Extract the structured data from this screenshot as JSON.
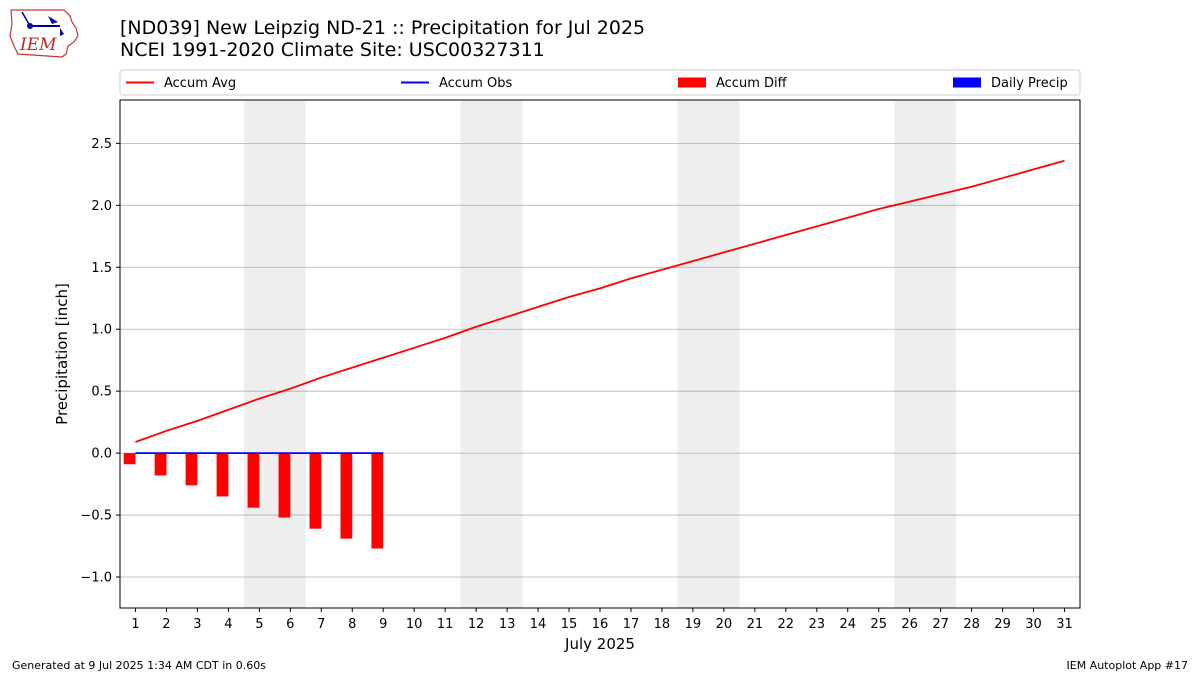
{
  "header": {
    "title": "[ND039] New Leipzig  ND-21 :: Precipitation for Jul 2025",
    "subtitle": "NCEI 1991-2020 Climate Site: USC00327311",
    "logo_text": "IEM"
  },
  "footer": {
    "left": "Generated at 9 Jul 2025 1:34 AM CDT in 0.60s",
    "right": "IEM Autoplot App #17"
  },
  "colors": {
    "accum_avg": "#ff0000",
    "accum_obs": "#0000ff",
    "accum_diff": "#ff0000",
    "daily_precip": "#0000ff",
    "weekend_band": "#eeeeee",
    "grid": "#b0b0b0"
  },
  "chart_data": {
    "type": "line",
    "xlabel": "July 2025",
    "ylabel": "Precipitation [inch]",
    "xlim": [
      0.5,
      31.5
    ],
    "ylim": [
      -1.25,
      2.85
    ],
    "yticks": [
      -1.0,
      -0.5,
      0.0,
      0.5,
      1.0,
      1.5,
      2.0,
      2.5
    ],
    "ytick_labels": [
      "−1.0",
      "−0.5",
      "0.0",
      "0.5",
      "1.0",
      "1.5",
      "2.0",
      "2.5"
    ],
    "x": [
      1,
      2,
      3,
      4,
      5,
      6,
      7,
      8,
      9,
      10,
      11,
      12,
      13,
      14,
      15,
      16,
      17,
      18,
      19,
      20,
      21,
      22,
      23,
      24,
      25,
      26,
      27,
      28,
      29,
      30,
      31
    ],
    "weekend_bands": [
      [
        4.5,
        6.5
      ],
      [
        11.5,
        13.5
      ],
      [
        18.5,
        20.5
      ],
      [
        25.5,
        27.5
      ]
    ],
    "grid": "horizontal",
    "legend_position": "top",
    "legend": [
      "Accum Avg",
      "Accum Obs",
      "Accum Diff",
      "Daily Precip"
    ],
    "series": [
      {
        "name": "Accum Avg",
        "kind": "line",
        "x": [
          1,
          2,
          3,
          4,
          5,
          6,
          7,
          8,
          9,
          10,
          11,
          12,
          13,
          14,
          15,
          16,
          17,
          18,
          19,
          20,
          21,
          22,
          23,
          24,
          25,
          26,
          27,
          28,
          29,
          30,
          31
        ],
        "values": [
          0.09,
          0.18,
          0.26,
          0.35,
          0.44,
          0.52,
          0.61,
          0.69,
          0.77,
          0.85,
          0.93,
          1.02,
          1.1,
          1.18,
          1.26,
          1.33,
          1.41,
          1.48,
          1.55,
          1.62,
          1.69,
          1.76,
          1.83,
          1.9,
          1.97,
          2.03,
          2.09,
          2.15,
          2.22,
          2.29,
          2.36
        ]
      },
      {
        "name": "Accum Obs",
        "kind": "line",
        "x": [
          1,
          2,
          3,
          4,
          5,
          6,
          7,
          8,
          9
        ],
        "values": [
          0,
          0,
          0,
          0,
          0,
          0,
          0,
          0,
          0
        ]
      },
      {
        "name": "Accum Diff",
        "kind": "bar",
        "x": [
          1,
          2,
          3,
          4,
          5,
          6,
          7,
          8,
          9
        ],
        "values": [
          -0.09,
          -0.18,
          -0.26,
          -0.35,
          -0.44,
          -0.52,
          -0.61,
          -0.69,
          -0.77
        ]
      },
      {
        "name": "Daily Precip",
        "kind": "bar",
        "x": [
          1,
          2,
          3,
          4,
          5,
          6,
          7,
          8,
          9
        ],
        "values": [
          0,
          0,
          0,
          0,
          0,
          0,
          0,
          0,
          0
        ]
      }
    ]
  }
}
